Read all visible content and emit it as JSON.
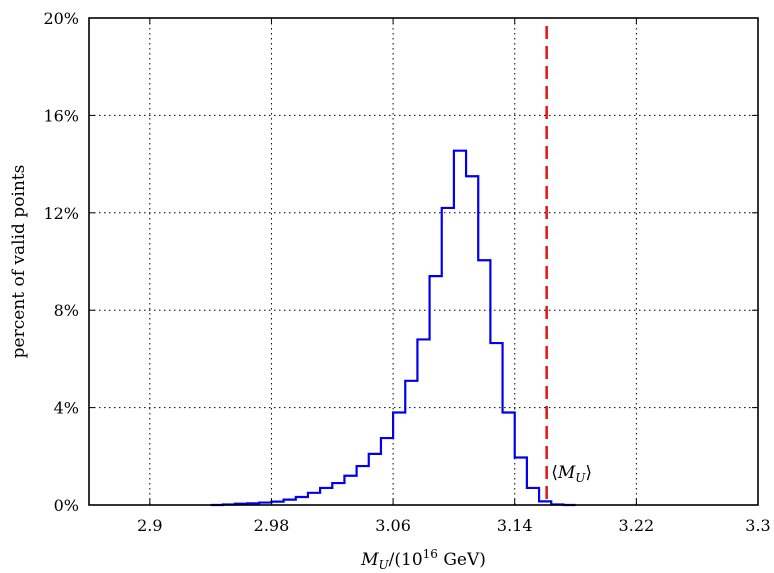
{
  "chart_data": {
    "type": "histogram",
    "xlabel_parts": {
      "var": "M",
      "sub": "U",
      "pre": "/(10",
      "sup": "16",
      "post": " GeV)"
    },
    "ylabel": "percent of valid points",
    "xlim": [
      2.86,
      3.3
    ],
    "ylim": [
      0,
      20
    ],
    "x_ticks": [
      2.9,
      2.98,
      3.06,
      3.14,
      3.22,
      3.3
    ],
    "x_tick_labels": [
      "2.9",
      "2.98",
      "3.06",
      "3.14",
      "3.22",
      "3.3"
    ],
    "y_ticks": [
      0,
      4,
      8,
      12,
      16,
      20
    ],
    "y_tick_labels": [
      "0%",
      "4%",
      "8%",
      "12%",
      "16%",
      "20%"
    ],
    "grid": true,
    "bin_width": 0.008,
    "bin_edges_start": 2.94,
    "values": [
      0.0,
      0.02,
      0.05,
      0.07,
      0.1,
      0.14,
      0.22,
      0.33,
      0.5,
      0.7,
      0.9,
      1.2,
      1.6,
      2.1,
      2.75,
      3.8,
      5.1,
      6.8,
      9.4,
      12.2,
      14.55,
      13.5,
      10.05,
      6.65,
      3.8,
      1.95,
      0.7,
      0.15,
      0.02,
      0.0
    ],
    "series_color": "#0000ee",
    "mean_line": {
      "x": 3.161,
      "color": "#e41a1c"
    },
    "annotation": {
      "var": "M",
      "sub": "U",
      "x": 3.164,
      "y": 1.1
    }
  }
}
